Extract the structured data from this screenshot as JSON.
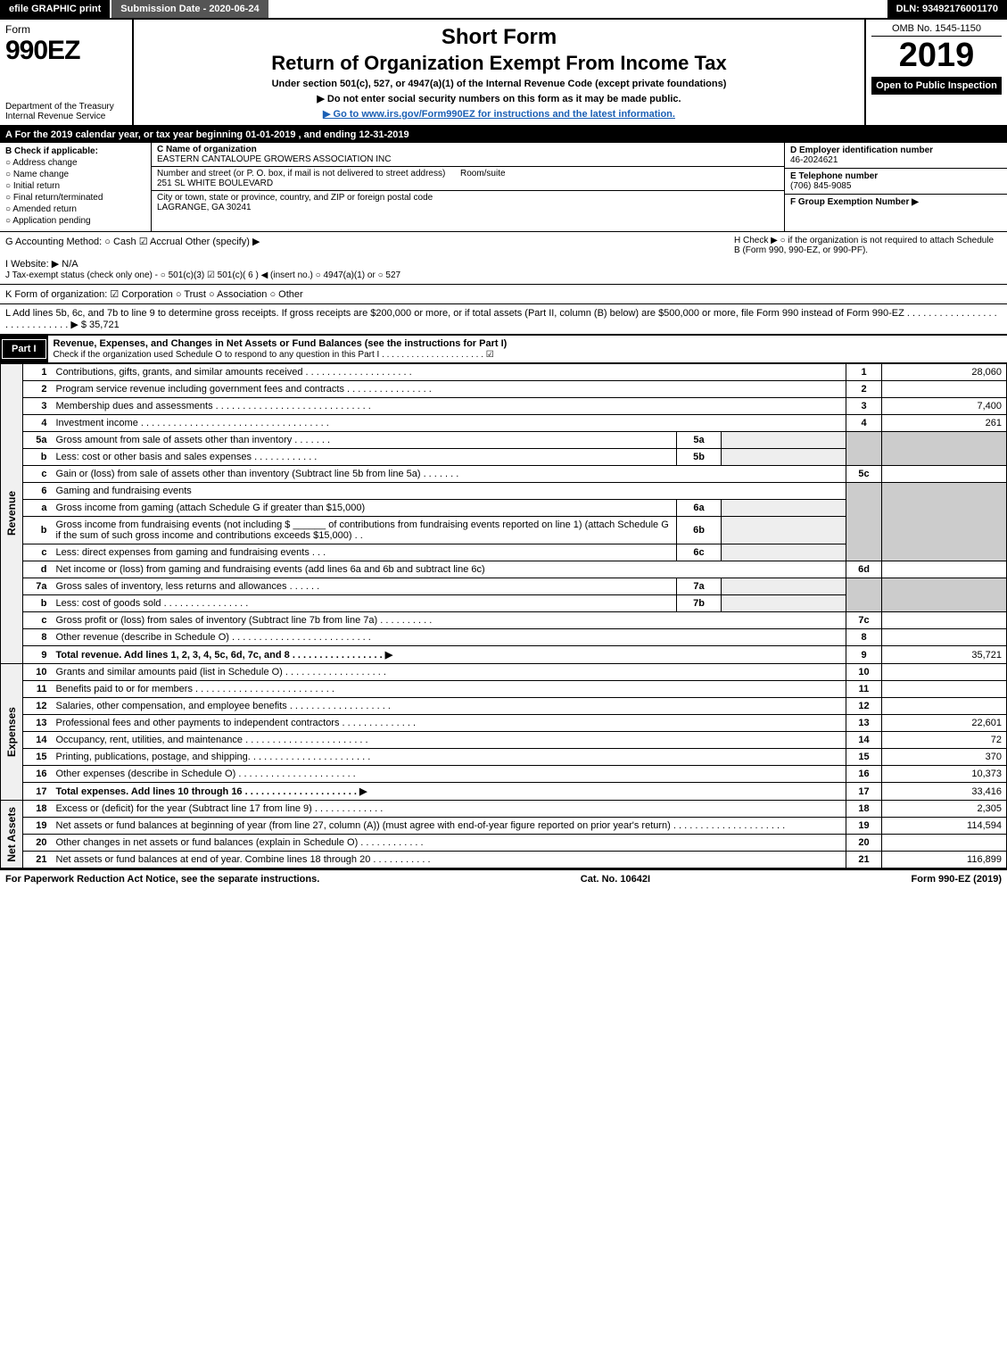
{
  "topbar": {
    "efile": "efile GRAPHIC print",
    "submission": "Submission Date - 2020-06-24",
    "dln": "DLN: 93492176001170"
  },
  "header": {
    "form_word": "Form",
    "form_num": "990EZ",
    "dept": "Department of the Treasury Internal Revenue Service",
    "short_form": "Short Form",
    "title": "Return of Organization Exempt From Income Tax",
    "subtitle": "Under section 501(c), 527, or 4947(a)(1) of the Internal Revenue Code (except private foundations)",
    "warn": "▶ Do not enter social security numbers on this form as it may be made public.",
    "goto": "▶ Go to www.irs.gov/Form990EZ for instructions and the latest information.",
    "omb": "OMB No. 1545-1150",
    "year": "2019",
    "open": "Open to Public Inspection"
  },
  "tax_year": "A For the 2019 calendar year, or tax year beginning 01-01-2019 , and ending 12-31-2019",
  "checkB": {
    "hd": "B Check if applicable:",
    "items": [
      "Address change",
      "Name change",
      "Initial return",
      "Final return/terminated",
      "Amended return",
      "Application pending"
    ]
  },
  "entity": {
    "c_lbl": "C Name of organization",
    "c_name": "EASTERN CANTALOUPE GROWERS ASSOCIATION INC",
    "addr_lbl": "Number and street (or P. O. box, if mail is not delivered to street address)",
    "addr": "251 SL WHITE BOULEVARD",
    "room_lbl": "Room/suite",
    "city_lbl": "City or town, state or province, country, and ZIP or foreign postal code",
    "city": "LAGRANGE, GA  30241"
  },
  "right": {
    "d_lbl": "D Employer identification number",
    "d_val": "46-2024621",
    "e_lbl": "E Telephone number",
    "e_val": "(706) 845-9085",
    "f_lbl": "F Group Exemption Number ▶"
  },
  "gline": {
    "g": "G Accounting Method:  ○ Cash  ☑ Accrual  Other (specify) ▶",
    "h": "H  Check ▶  ○ if the organization is not required to attach Schedule B (Form 990, 990-EZ, or 990-PF).",
    "i": "I Website: ▶ N/A",
    "j": "J Tax-exempt status (check only one) - ○ 501(c)(3) ☑ 501(c)( 6 ) ◀ (insert no.) ○ 4947(a)(1) or ○ 527"
  },
  "k": "K Form of organization:  ☑ Corporation  ○ Trust  ○ Association  ○ Other",
  "l": "L Add lines 5b, 6c, and 7b to line 9 to determine gross receipts. If gross receipts are $200,000 or more, or if total assets (Part II, column (B) below) are $500,000 or more, file Form 990 instead of Form 990-EZ . . . . . . . . . . . . . . . . . . . . . . . . . . . . . ▶ $ 35,721",
  "part1": {
    "label": "Part I",
    "title": "Revenue, Expenses, and Changes in Net Assets or Fund Balances (see the instructions for Part I)",
    "sub": "Check if the organization used Schedule O to respond to any question in this Part I . . . . . . . . . . . . . . . . . . . . . ☑"
  },
  "sections": {
    "revenue": "Revenue",
    "expenses": "Expenses",
    "netassets": "Net Assets"
  },
  "lines": {
    "l1": {
      "no": "1",
      "desc": "Contributions, gifts, grants, and similar amounts received . . . . . . . . . . . . . . . . . . . .",
      "rn": "1",
      "amt": "28,060"
    },
    "l2": {
      "no": "2",
      "desc": "Program service revenue including government fees and contracts . . . . . . . . . . . . . . . .",
      "rn": "2",
      "amt": ""
    },
    "l3": {
      "no": "3",
      "desc": "Membership dues and assessments . . . . . . . . . . . . . . . . . . . . . . . . . . . . .",
      "rn": "3",
      "amt": "7,400"
    },
    "l4": {
      "no": "4",
      "desc": "Investment income . . . . . . . . . . . . . . . . . . . . . . . . . . . . . . . . . . .",
      "rn": "4",
      "amt": "261"
    },
    "l5a": {
      "no": "5a",
      "desc": "Gross amount from sale of assets other than inventory . . . . . . .",
      "box": "5a"
    },
    "l5b": {
      "no": "b",
      "desc": "Less: cost or other basis and sales expenses . . . . . . . . . . . .",
      "box": "5b"
    },
    "l5c": {
      "no": "c",
      "desc": "Gain or (loss) from sale of assets other than inventory (Subtract line 5b from line 5a) . . . . . . .",
      "rn": "5c",
      "amt": ""
    },
    "l6": {
      "no": "6",
      "desc": "Gaming and fundraising events"
    },
    "l6a": {
      "no": "a",
      "desc": "Gross income from gaming (attach Schedule G if greater than $15,000)",
      "box": "6a"
    },
    "l6b": {
      "no": "b",
      "desc": "Gross income from fundraising events (not including $ ______ of contributions from fundraising events reported on line 1) (attach Schedule G if the sum of such gross income and contributions exceeds $15,000)   . .",
      "box": "6b"
    },
    "l6c": {
      "no": "c",
      "desc": "Less: direct expenses from gaming and fundraising events     . . .",
      "box": "6c"
    },
    "l6d": {
      "no": "d",
      "desc": "Net income or (loss) from gaming and fundraising events (add lines 6a and 6b and subtract line 6c)",
      "rn": "6d",
      "amt": ""
    },
    "l7a": {
      "no": "7a",
      "desc": "Gross sales of inventory, less returns and allowances . . . . . .",
      "box": "7a"
    },
    "l7b": {
      "no": "b",
      "desc": "Less: cost of goods sold        . . . . . . . . . . . . . . . .",
      "box": "7b"
    },
    "l7c": {
      "no": "c",
      "desc": "Gross profit or (loss) from sales of inventory (Subtract line 7b from line 7a) . . . . . . . . . .",
      "rn": "7c",
      "amt": ""
    },
    "l8": {
      "no": "8",
      "desc": "Other revenue (describe in Schedule O) . . . . . . . . . . . . . . . . . . . . . . . . . .",
      "rn": "8",
      "amt": ""
    },
    "l9": {
      "no": "9",
      "desc": "Total revenue. Add lines 1, 2, 3, 4, 5c, 6d, 7c, and 8  . . . . . . . . . . . . . . . . .  ▶",
      "rn": "9",
      "amt": "35,721"
    },
    "l10": {
      "no": "10",
      "desc": "Grants and similar amounts paid (list in Schedule O) . . . . . . . . . . . . . . . . . . .",
      "rn": "10",
      "amt": ""
    },
    "l11": {
      "no": "11",
      "desc": "Benefits paid to or for members     . . . . . . . . . . . . . . . . . . . . . . . . . .",
      "rn": "11",
      "amt": ""
    },
    "l12": {
      "no": "12",
      "desc": "Salaries, other compensation, and employee benefits . . . . . . . . . . . . . . . . . . .",
      "rn": "12",
      "amt": ""
    },
    "l13": {
      "no": "13",
      "desc": "Professional fees and other payments to independent contractors . . . . . . . . . . . . . .",
      "rn": "13",
      "amt": "22,601"
    },
    "l14": {
      "no": "14",
      "desc": "Occupancy, rent, utilities, and maintenance . . . . . . . . . . . . . . . . . . . . . . .",
      "rn": "14",
      "amt": "72"
    },
    "l15": {
      "no": "15",
      "desc": "Printing, publications, postage, and shipping. . . . . . . . . . . . . . . . . . . . . . .",
      "rn": "15",
      "amt": "370"
    },
    "l16": {
      "no": "16",
      "desc": "Other expenses (describe in Schedule O)      . . . . . . . . . . . . . . . . . . . . . .",
      "rn": "16",
      "amt": "10,373"
    },
    "l17": {
      "no": "17",
      "desc": "Total expenses. Add lines 10 through 16     . . . . . . . . . . . . . . . . . . . . . ▶",
      "rn": "17",
      "amt": "33,416"
    },
    "l18": {
      "no": "18",
      "desc": "Excess or (deficit) for the year (Subtract line 17 from line 9)       . . . . . . . . . . . . .",
      "rn": "18",
      "amt": "2,305"
    },
    "l19": {
      "no": "19",
      "desc": "Net assets or fund balances at beginning of year (from line 27, column (A)) (must agree with end-of-year figure reported on prior year's return) . . . . . . . . . . . . . . . . . . . . .",
      "rn": "19",
      "amt": "114,594"
    },
    "l20": {
      "no": "20",
      "desc": "Other changes in net assets or fund balances (explain in Schedule O) . . . . . . . . . . . .",
      "rn": "20",
      "amt": ""
    },
    "l21": {
      "no": "21",
      "desc": "Net assets or fund balances at end of year. Combine lines 18 through 20 . . . . . . . . . . .",
      "rn": "21",
      "amt": "116,899"
    }
  },
  "footer": {
    "left": "For Paperwork Reduction Act Notice, see the separate instructions.",
    "mid": "Cat. No. 10642I",
    "right": "Form 990-EZ (2019)"
  }
}
